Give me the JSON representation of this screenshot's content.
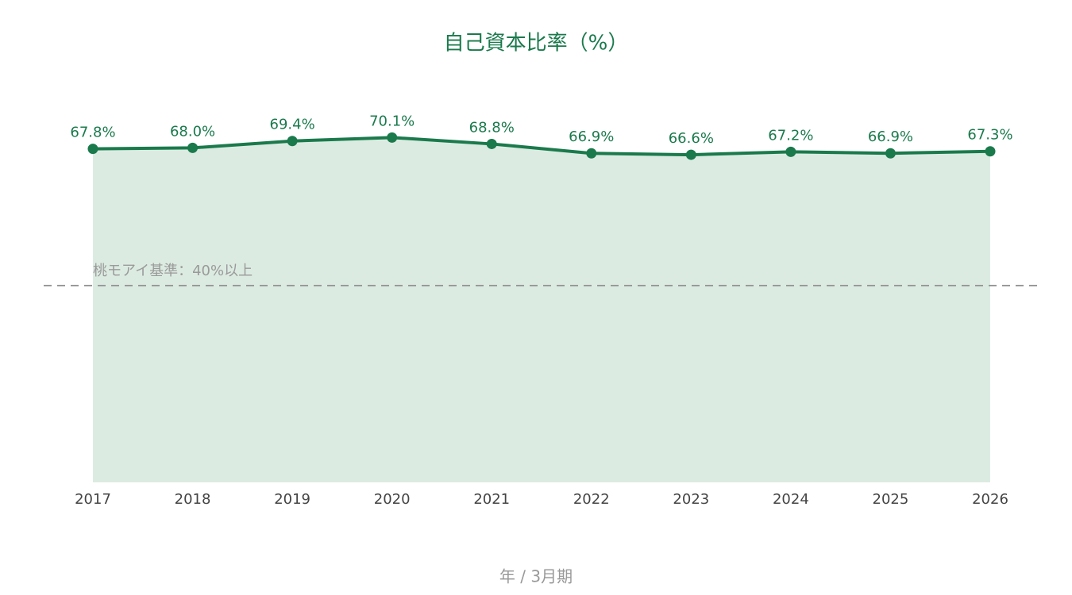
{
  "chart_data": {
    "type": "area",
    "title": "自己資本比率（%）",
    "x_label": "年 / 3月期",
    "categories": [
      "2017",
      "2018",
      "2019",
      "2020",
      "2021",
      "2022",
      "2023",
      "2024",
      "2025",
      "2026"
    ],
    "values": [
      67.8,
      68.0,
      69.4,
      70.1,
      68.8,
      66.9,
      66.6,
      67.2,
      66.9,
      67.3
    ],
    "value_labels": [
      "67.8%",
      "68.0%",
      "69.4%",
      "70.1%",
      "68.8%",
      "66.9%",
      "66.6%",
      "67.2%",
      "66.9%",
      "67.3%"
    ],
    "color": "#1a7a4c",
    "fill_color": "#dcebe2",
    "ylim": [
      0,
      80
    ],
    "reference_line": {
      "value": 40,
      "label": "桃モアイ基準：40%以上",
      "color": "#9a9a9a"
    }
  }
}
